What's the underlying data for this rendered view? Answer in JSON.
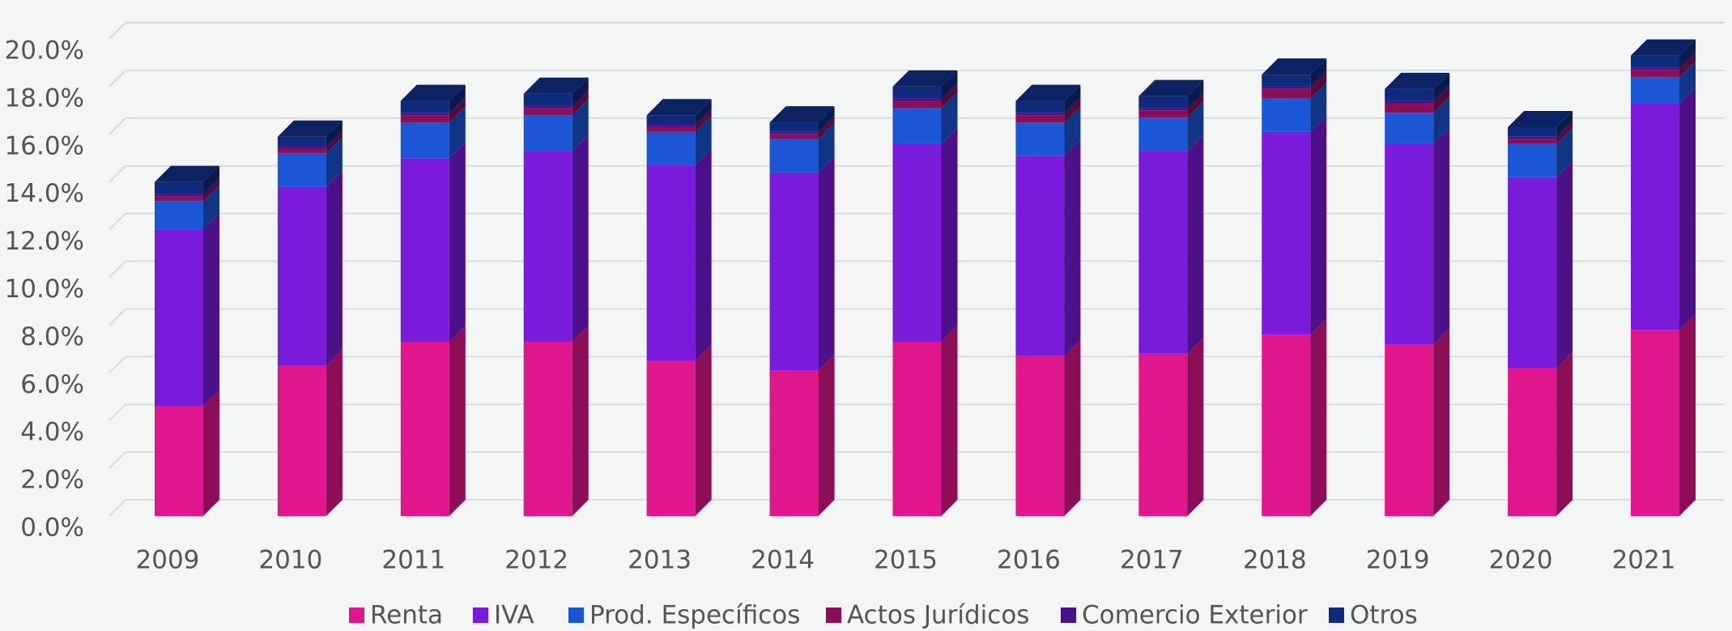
{
  "chart_data": {
    "type": "stacked-bar-3d",
    "categories": [
      "2009",
      "2010",
      "2011",
      "2012",
      "2013",
      "2014",
      "2015",
      "2016",
      "2017",
      "2018",
      "2019",
      "2020",
      "2021"
    ],
    "series": [
      {
        "name": "Renta",
        "color": "#e0168c",
        "values": [
          4.6,
          6.3,
          7.3,
          7.3,
          6.5,
          6.1,
          7.3,
          6.7,
          6.8,
          7.6,
          7.2,
          6.2,
          7.8
        ]
      },
      {
        "name": "IVA",
        "color": "#7a1adb",
        "values": [
          7.4,
          7.5,
          7.7,
          8.0,
          8.2,
          8.3,
          8.3,
          8.4,
          8.5,
          8.5,
          8.4,
          8.0,
          9.5
        ]
      },
      {
        "name": "Prod. Específicos",
        "color": "#1a56d6",
        "values": [
          1.2,
          1.4,
          1.5,
          1.5,
          1.4,
          1.4,
          1.5,
          1.4,
          1.4,
          1.4,
          1.3,
          1.4,
          1.1
        ]
      },
      {
        "name": "Actos Jurídicos",
        "color": "#8a0f58",
        "values": [
          0.2,
          0.2,
          0.3,
          0.3,
          0.2,
          0.2,
          0.3,
          0.3,
          0.3,
          0.4,
          0.4,
          0.2,
          0.3
        ]
      },
      {
        "name": "Comercio Exterior",
        "color": "#4a0f8a",
        "values": [
          0.1,
          0.1,
          0.1,
          0.1,
          0.1,
          0.1,
          0.1,
          0.1,
          0.1,
          0.1,
          0.1,
          0.1,
          0.1
        ]
      },
      {
        "name": "Otros",
        "color": "#0f2a7a",
        "values": [
          0.5,
          0.4,
          0.5,
          0.5,
          0.4,
          0.4,
          0.5,
          0.5,
          0.5,
          0.5,
          0.5,
          0.4,
          0.5
        ]
      }
    ],
    "ylim": [
      0,
      20
    ],
    "yticks": [
      {
        "value": 0,
        "label": "0.0%"
      },
      {
        "value": 2,
        "label": "2.0%"
      },
      {
        "value": 4,
        "label": "4.0%"
      },
      {
        "value": 6,
        "label": "6.0%"
      },
      {
        "value": 8,
        "label": "8.0%"
      },
      {
        "value": 10,
        "label": "10.0%"
      },
      {
        "value": 12,
        "label": "12.0%"
      },
      {
        "value": 14,
        "label": "14.0%"
      },
      {
        "value": 16,
        "label": "16.0%"
      },
      {
        "value": 18,
        "label": "18.0%"
      },
      {
        "value": 20,
        "label": "20.0%"
      }
    ],
    "grid": true,
    "legend": "bottom"
  }
}
